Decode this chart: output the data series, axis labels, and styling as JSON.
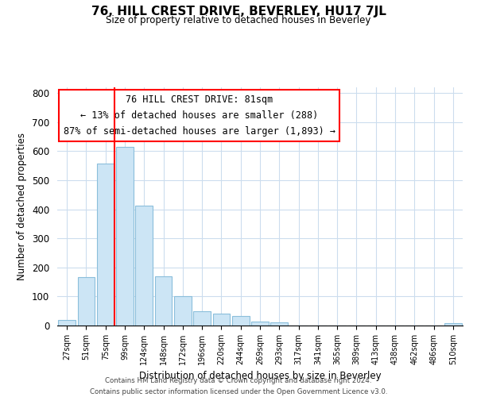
{
  "title": "76, HILL CREST DRIVE, BEVERLEY, HU17 7JL",
  "subtitle": "Size of property relative to detached houses in Beverley",
  "xlabel": "Distribution of detached houses by size in Beverley",
  "ylabel": "Number of detached properties",
  "bar_labels": [
    "27sqm",
    "51sqm",
    "75sqm",
    "99sqm",
    "124sqm",
    "148sqm",
    "172sqm",
    "196sqm",
    "220sqm",
    "244sqm",
    "269sqm",
    "293sqm",
    "317sqm",
    "341sqm",
    "365sqm",
    "389sqm",
    "413sqm",
    "438sqm",
    "462sqm",
    "486sqm",
    "510sqm"
  ],
  "bar_values": [
    20,
    168,
    558,
    614,
    413,
    170,
    100,
    50,
    40,
    33,
    14,
    10,
    0,
    0,
    0,
    0,
    0,
    0,
    0,
    0,
    7
  ],
  "bar_color": "#cce5f5",
  "bar_edge_color": "#8bbfdb",
  "red_line_index": 2,
  "ylim": [
    0,
    820
  ],
  "yticks": [
    0,
    100,
    200,
    300,
    400,
    500,
    600,
    700,
    800
  ],
  "annotation_title": "76 HILL CREST DRIVE: 81sqm",
  "annotation_line1": "← 13% of detached houses are smaller (288)",
  "annotation_line2": "87% of semi-detached houses are larger (1,893) →",
  "footer_line1": "Contains HM Land Registry data © Crown copyright and database right 2024.",
  "footer_line2": "Contains public sector information licensed under the Open Government Licence v3.0.",
  "background_color": "#ffffff",
  "grid_color": "#ccddee"
}
